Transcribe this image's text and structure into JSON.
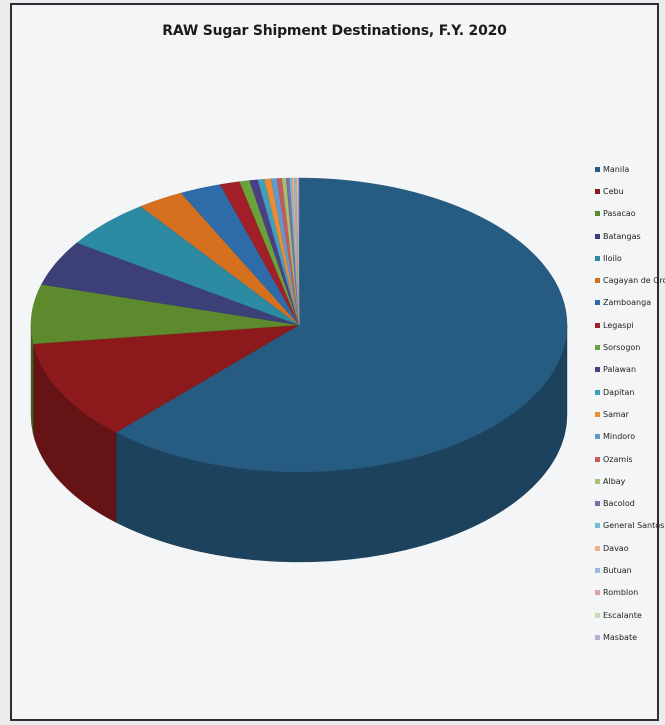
{
  "chart_data": {
    "type": "pie",
    "title": "RAW Sugar Shipment Destinations, F.Y. 2020",
    "categories": [
      "Manila",
      "Cebu",
      "Pasacao",
      "Batangas",
      "Iloilo",
      "Cagayan de Oro",
      "Zamboanga",
      "Legaspi",
      "Sorsogon",
      "Palawan",
      "Dapitan",
      "Samar",
      "Mindoro",
      "Ozamis",
      "Albay",
      "Bacolod",
      "General Santos",
      "Davao",
      "Butuan",
      "Romblon",
      "Escalante",
      "Masbate"
    ],
    "values": [
      62.0,
      11.0,
      6.5,
      5.0,
      5.5,
      2.8,
      2.5,
      1.2,
      0.6,
      0.5,
      0.4,
      0.4,
      0.35,
      0.3,
      0.25,
      0.2,
      0.15,
      0.12,
      0.1,
      0.08,
      0.06,
      0.05
    ],
    "colors": [
      "#275c82",
      "#8c1a1c",
      "#5c8a2c",
      "#3d3f78",
      "#2c8aa2",
      "#d5701e",
      "#2d6ca8",
      "#a11f28",
      "#6aa33a",
      "#4c3f86",
      "#3fa0bc",
      "#ee8c33",
      "#5f9bd0",
      "#c95a5c",
      "#a3c274",
      "#7c6ea6",
      "#72bdd3",
      "#f3b082",
      "#9cb8da",
      "#dba3a4",
      "#c8deb0",
      "#b8aed0"
    ],
    "legend_position": "right",
    "style": "3d"
  }
}
